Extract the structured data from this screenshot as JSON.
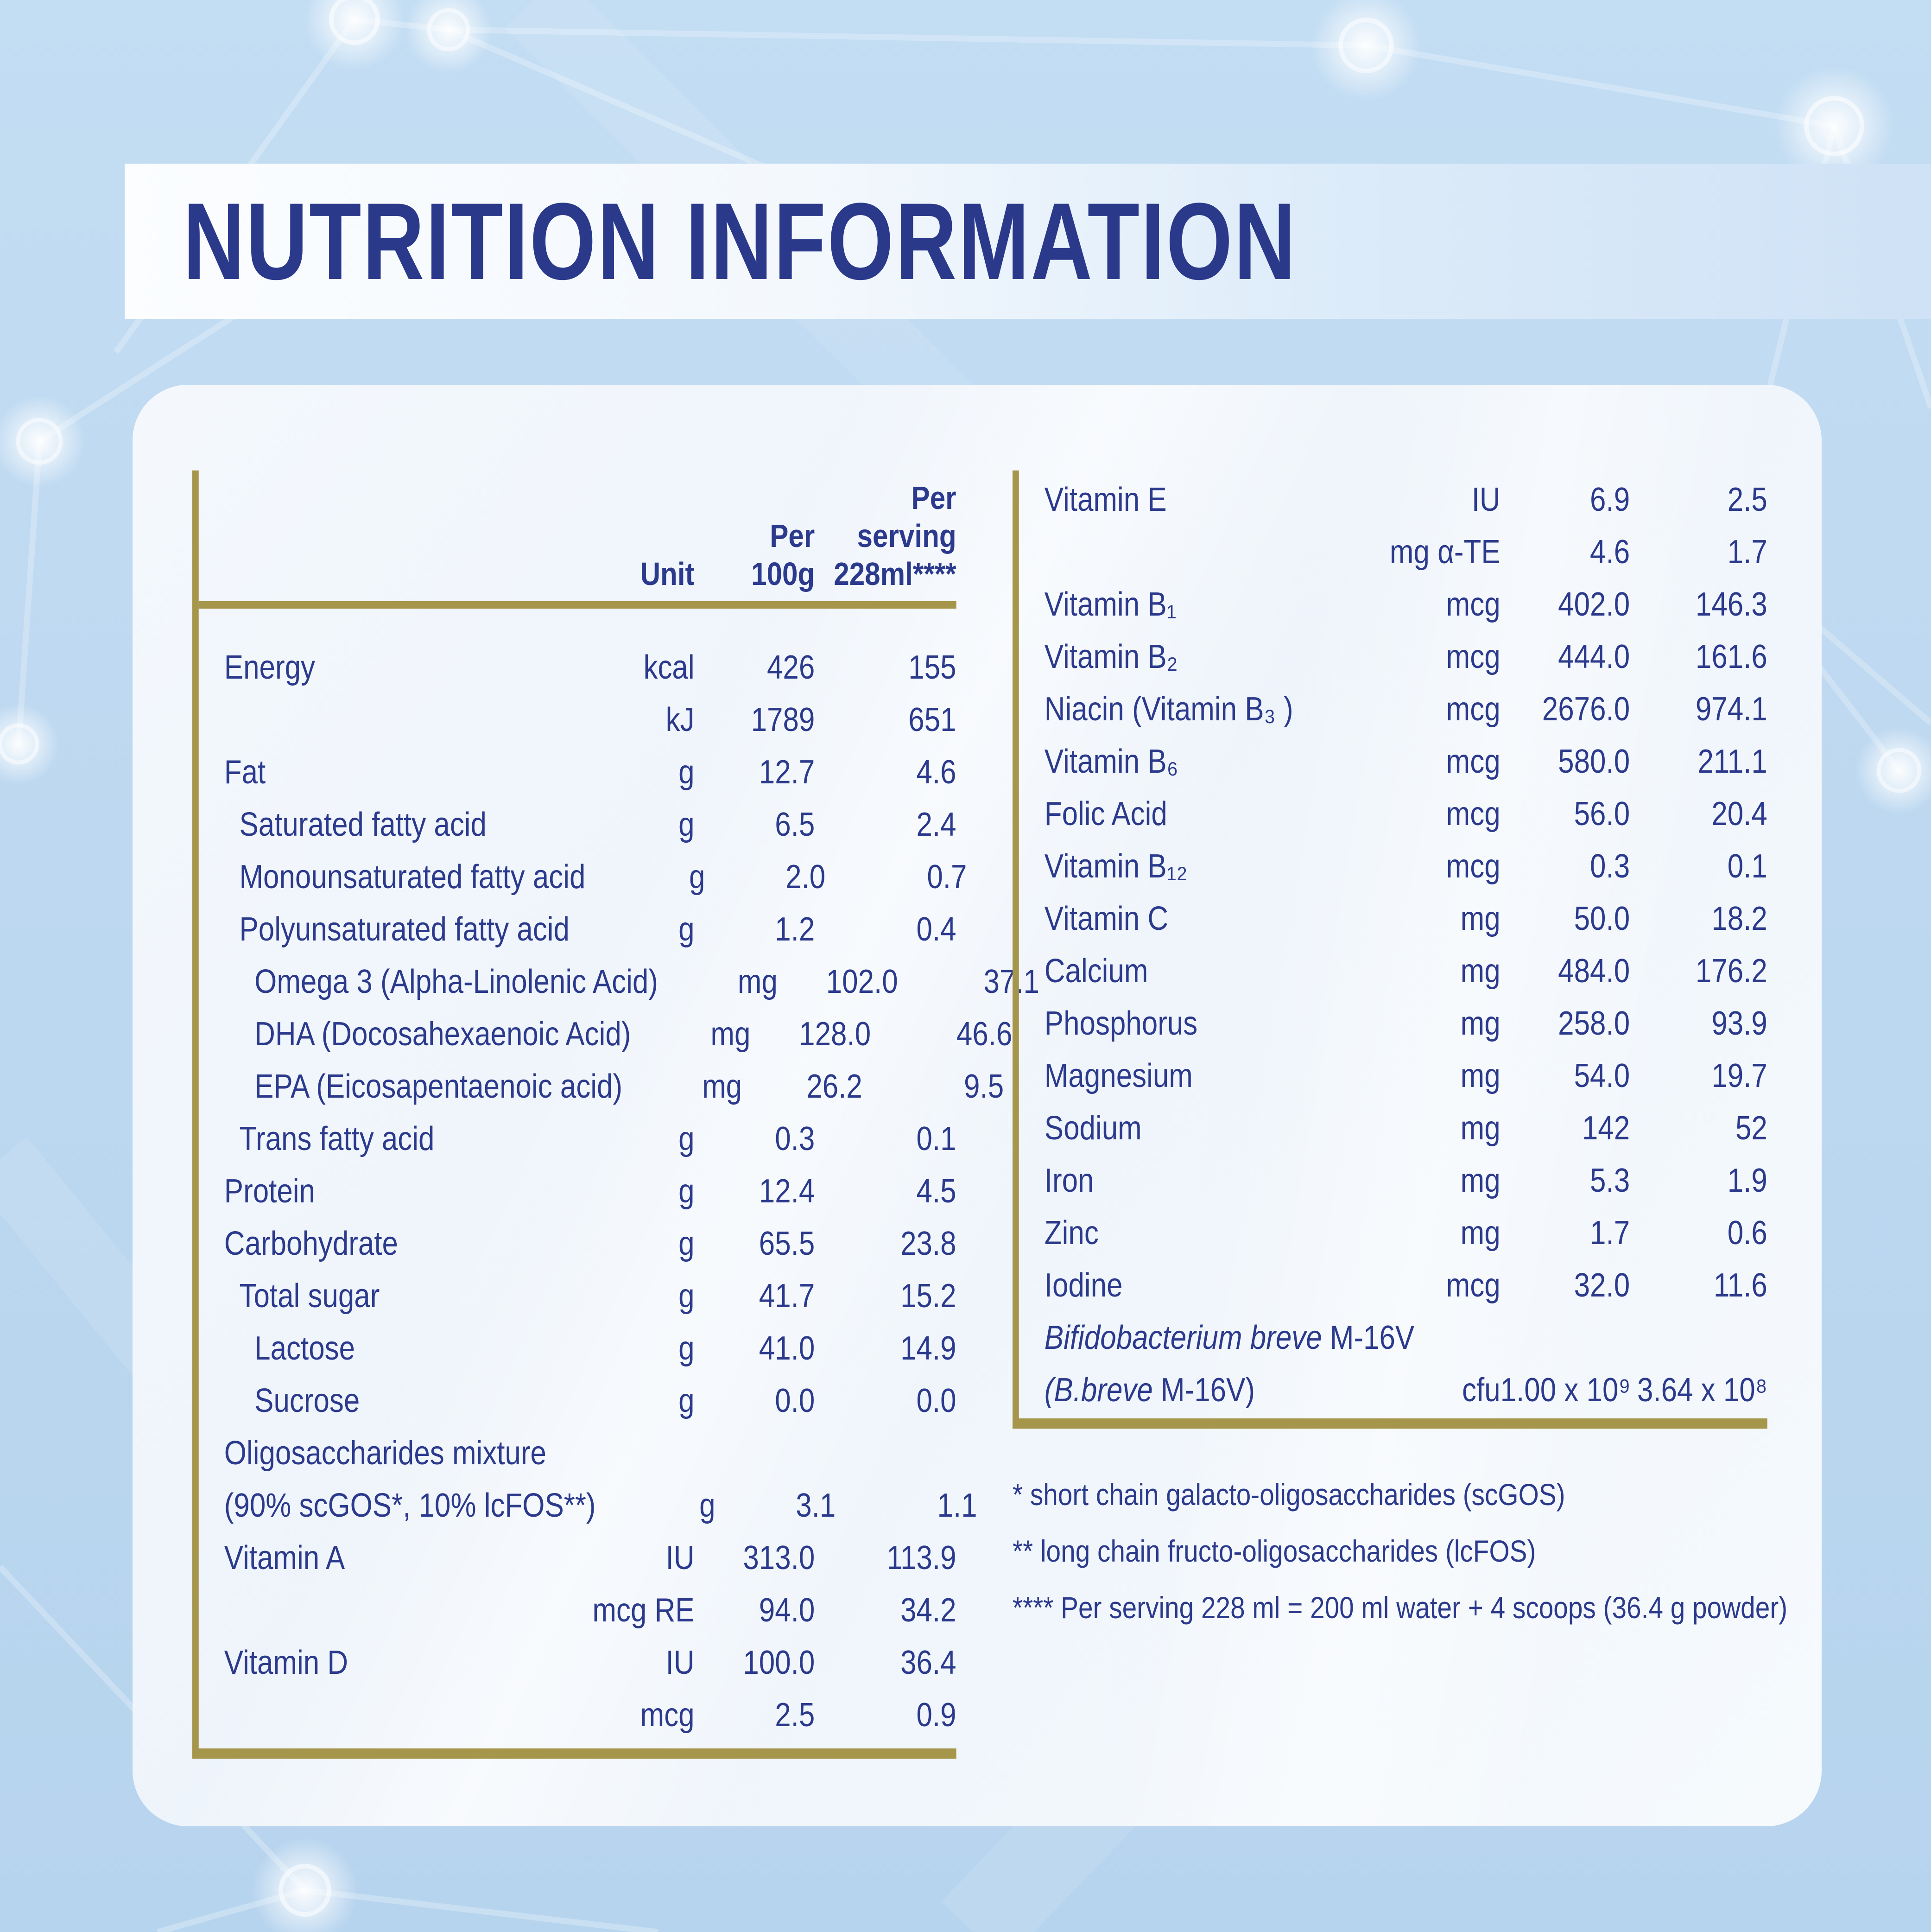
{
  "title": "NUTRITION INFORMATION",
  "colors": {
    "background": "#bdd8f0",
    "banner": "#f3f8fd",
    "card": "#f0f5fb",
    "text_navy": "#2b3a8c",
    "rule_gold": "#a5964b"
  },
  "table_left": {
    "header": {
      "unit": "Unit",
      "per_100g": [
        "Per",
        "100g"
      ],
      "per_serving": [
        "Per",
        "serving",
        "228ml****"
      ]
    },
    "rows": [
      {
        "label": "Energy",
        "unit": "kcal",
        "per_100g": "426",
        "per_serving": "155",
        "indent": 0
      },
      {
        "label": "",
        "unit": "kJ",
        "per_100g": "1789",
        "per_serving": "651",
        "indent": 0
      },
      {
        "label": "Fat",
        "unit": "g",
        "per_100g": "12.7",
        "per_serving": "4.6",
        "indent": 0
      },
      {
        "label": "Saturated fatty acid",
        "unit": "g",
        "per_100g": "6.5",
        "per_serving": "2.4",
        "indent": 1
      },
      {
        "label": "Monounsaturated fatty acid",
        "unit": "g",
        "per_100g": "2.0",
        "per_serving": "0.7",
        "indent": 1
      },
      {
        "label": "Polyunsaturated fatty acid",
        "unit": "g",
        "per_100g": "1.2",
        "per_serving": "0.4",
        "indent": 1
      },
      {
        "label": "Omega 3 (Alpha-Linolenic Acid)",
        "unit": "mg",
        "per_100g": "102.0",
        "per_serving": "37.1",
        "indent": 2
      },
      {
        "label": "DHA (Docosahexaenoic Acid)",
        "unit": "mg",
        "per_100g": "128.0",
        "per_serving": "46.6",
        "indent": 2
      },
      {
        "label": "EPA (Eicosapentaenoic acid)",
        "unit": "mg",
        "per_100g": "26.2",
        "per_serving": "9.5",
        "indent": 2
      },
      {
        "label": "Trans fatty acid",
        "unit": "g",
        "per_100g": "0.3",
        "per_serving": "0.1",
        "indent": 1
      },
      {
        "label": "Protein",
        "unit": "g",
        "per_100g": "12.4",
        "per_serving": "4.5",
        "indent": 0
      },
      {
        "label": "Carbohydrate",
        "unit": "g",
        "per_100g": "65.5",
        "per_serving": "23.8",
        "indent": 0
      },
      {
        "label": "Total sugar",
        "unit": "g",
        "per_100g": "41.7",
        "per_serving": "15.2",
        "indent": 1
      },
      {
        "label": "Lactose",
        "unit": "g",
        "per_100g": "41.0",
        "per_serving": "14.9",
        "indent": 2
      },
      {
        "label": "Sucrose",
        "unit": "g",
        "per_100g": "0.0",
        "per_serving": "0.0",
        "indent": 2
      },
      {
        "label": "Oligosaccharides mixture",
        "unit": "",
        "per_100g": "",
        "per_serving": "",
        "indent": 0
      },
      {
        "label": "(90% scGOS*, 10% lcFOS**)",
        "unit": "g",
        "per_100g": "3.1",
        "per_serving": "1.1",
        "indent": 0
      },
      {
        "label": "Vitamin A",
        "unit": "IU",
        "per_100g": "313.0",
        "per_serving": "113.9",
        "indent": 0
      },
      {
        "label": "",
        "unit": "mcg RE",
        "per_100g": "94.0",
        "per_serving": "34.2",
        "indent": 0
      },
      {
        "label": "Vitamin D",
        "unit": "IU",
        "per_100g": "100.0",
        "per_serving": "36.4",
        "indent": 0
      },
      {
        "label": "",
        "unit": "mcg",
        "per_100g": "2.5",
        "per_serving": "0.9",
        "indent": 0
      }
    ]
  },
  "table_right": {
    "rows": [
      {
        "label": "Vitamin E",
        "unit": "IU",
        "per_100g": "6.9",
        "per_serving": "2.5",
        "indent": 0
      },
      {
        "label": "",
        "unit": "mg α-TE",
        "per_100g": "4.6",
        "per_serving": "1.7",
        "indent": 0
      },
      {
        "label": "Vitamin B₁",
        "unit": "mcg",
        "per_100g": "402.0",
        "per_serving": "146.3",
        "indent": 0
      },
      {
        "label": "Vitamin B₂",
        "unit": "mcg",
        "per_100g": "444.0",
        "per_serving": "161.6",
        "indent": 0
      },
      {
        "label": "Niacin (Vitamin B₃ )",
        "unit": "mcg",
        "per_100g": "2676.0",
        "per_serving": "974.1",
        "indent": 0
      },
      {
        "label": "Vitamin B₆",
        "unit": "mcg",
        "per_100g": "580.0",
        "per_serving": "211.1",
        "indent": 0
      },
      {
        "label": "Folic Acid",
        "unit": "mcg",
        "per_100g": "56.0",
        "per_serving": "20.4",
        "indent": 0
      },
      {
        "label": "Vitamin B₁₂",
        "unit": "mcg",
        "per_100g": "0.3",
        "per_serving": "0.1",
        "indent": 0
      },
      {
        "label": "Vitamin C",
        "unit": "mg",
        "per_100g": "50.0",
        "per_serving": "18.2",
        "indent": 0
      },
      {
        "label": "Calcium",
        "unit": "mg",
        "per_100g": "484.0",
        "per_serving": "176.2",
        "indent": 0
      },
      {
        "label": "Phosphorus",
        "unit": "mg",
        "per_100g": "258.0",
        "per_serving": "93.9",
        "indent": 0
      },
      {
        "label": "Magnesium",
        "unit": "mg",
        "per_100g": "54.0",
        "per_serving": "19.7",
        "indent": 0
      },
      {
        "label": "Sodium",
        "unit": "mg",
        "per_100g": "142",
        "per_serving": "52",
        "indent": 0
      },
      {
        "label": "Iron",
        "unit": "mg",
        "per_100g": "5.3",
        "per_serving": "1.9",
        "indent": 0
      },
      {
        "label": "Zinc",
        "unit": "mg",
        "per_100g": "1.7",
        "per_serving": "0.6",
        "indent": 0
      },
      {
        "label": "Iodine",
        "unit": "mcg",
        "per_100g": "32.0",
        "per_serving": "11.6",
        "indent": 0
      },
      {
        "italic": "Bifidobacterium breve",
        "label": " M-16V",
        "unit": "",
        "per_100g": "",
        "per_serving": "",
        "indent": 0
      },
      {
        "italic": "(B.breve",
        "label": " M-16V)",
        "unit": "cfu",
        "per_100g": "1.00 x 10⁹",
        "per_serving": "3.64 x 10⁸",
        "indent": 0
      }
    ]
  },
  "footnotes": [
    "* short chain galacto-oligosaccharides (scGOS)",
    "** long chain fructo-oligosaccharides (lcFOS)",
    "**** Per serving 228 ml = 200 ml water + 4 scoops (36.4 g powder)"
  ]
}
